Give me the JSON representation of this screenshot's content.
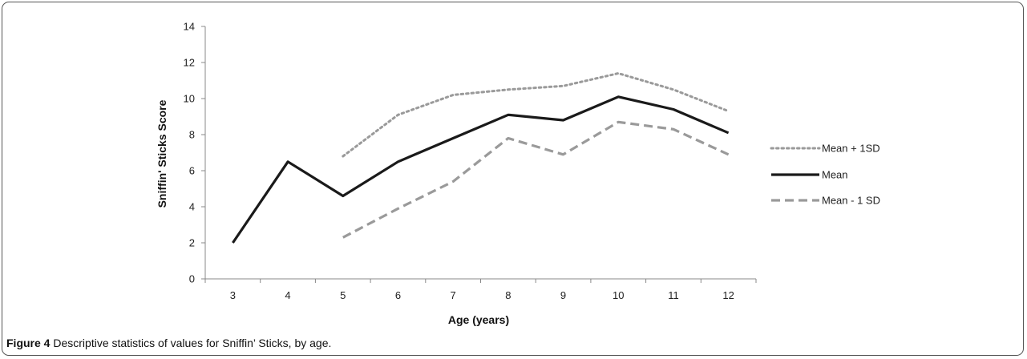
{
  "caption": {
    "label": "Figure 4",
    "text": "Descriptive statistics of values for Sniffin’ Sticks, by age."
  },
  "chart_data": {
    "type": "line",
    "xlabel": "Age (years)",
    "ylabel": "Sniffin' Sticks Score",
    "categories": [
      "3",
      "4",
      "5",
      "6",
      "7",
      "8",
      "9",
      "10",
      "11",
      "12"
    ],
    "ylim": [
      0,
      14
    ],
    "yticks": [
      0,
      2,
      4,
      6,
      8,
      10,
      12,
      14
    ],
    "grid": false,
    "legend_position": "right",
    "series": [
      {
        "name": "Mean + 1SD",
        "style": "dotted",
        "color": "#9a9a9a",
        "values": [
          null,
          null,
          6.8,
          9.1,
          10.2,
          10.5,
          10.7,
          11.4,
          10.5,
          9.3
        ]
      },
      {
        "name": "Mean",
        "style": "solid",
        "color": "#1a1a1a",
        "values": [
          2.0,
          6.5,
          4.6,
          6.5,
          7.8,
          9.1,
          8.8,
          10.1,
          9.4,
          8.1
        ]
      },
      {
        "name": "Mean - 1 SD",
        "style": "dashed",
        "color": "#9a9a9a",
        "values": [
          null,
          null,
          2.3,
          3.9,
          5.4,
          7.8,
          6.9,
          8.7,
          8.3,
          6.9
        ]
      }
    ]
  }
}
